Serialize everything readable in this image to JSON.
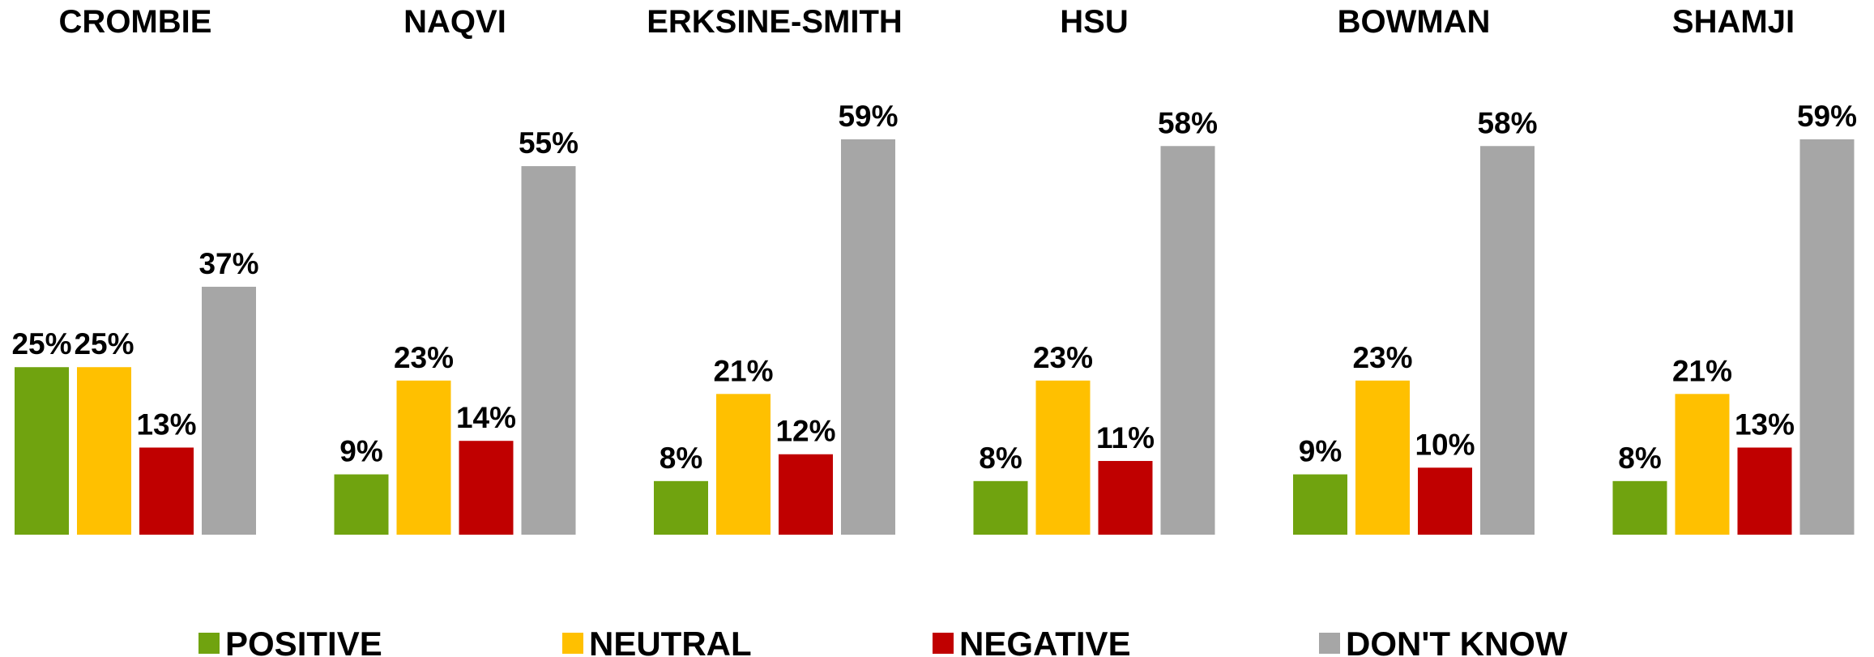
{
  "chart_data": {
    "type": "bar",
    "categories": [
      "CROMBIE",
      "NAQVI",
      "ERKSINE-SMITH",
      "HSU",
      "BOWMAN",
      "SHAMJI"
    ],
    "series": [
      {
        "name": "POSITIVE",
        "color": "#70a30f",
        "values": [
          25,
          9,
          8,
          8,
          9,
          8
        ],
        "value_labels": [
          "25%",
          "9%",
          "8%",
          "8%",
          "9%",
          "8%"
        ]
      },
      {
        "name": "NEUTRAL",
        "color": "#ffc000",
        "values": [
          25,
          23,
          21,
          23,
          23,
          21
        ],
        "value_labels": [
          "25%",
          "23%",
          "21%",
          "23%",
          "23%",
          "21%"
        ]
      },
      {
        "name": "NEGATIVE",
        "color": "#c00000",
        "values": [
          13,
          14,
          12,
          11,
          10,
          13
        ],
        "value_labels": [
          "13%",
          "14%",
          "12%",
          "11%",
          "10%",
          "13%"
        ]
      },
      {
        "name": "DON'T KNOW",
        "color": "#a6a6a6",
        "values": [
          37,
          55,
          59,
          58,
          58,
          59
        ],
        "value_labels": [
          "37%",
          "55%",
          "59%",
          "58%",
          "58%",
          "59%"
        ]
      }
    ],
    "legend": "bottom"
  }
}
